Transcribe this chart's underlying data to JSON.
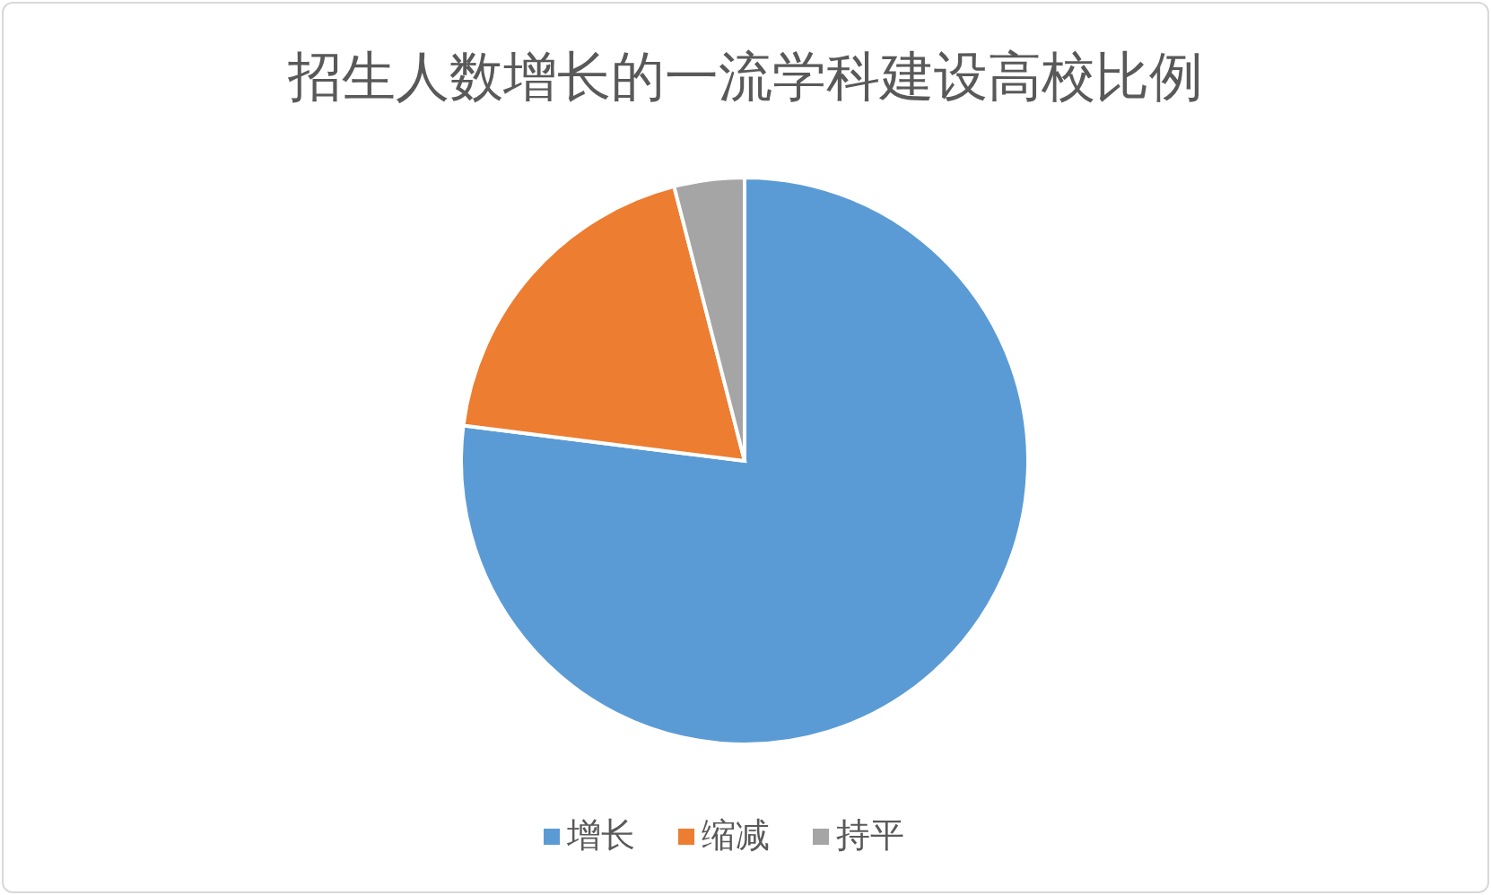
{
  "chart_data": {
    "type": "pie",
    "title": "招生人数增长的一流学科建设高校比例",
    "categories": [
      "增长",
      "缩减",
      "持平"
    ],
    "values": [
      77,
      19,
      4
    ],
    "colors": [
      "#5b9bd5",
      "#ed7d31",
      "#a5a5a5"
    ],
    "legend": "bottom"
  }
}
